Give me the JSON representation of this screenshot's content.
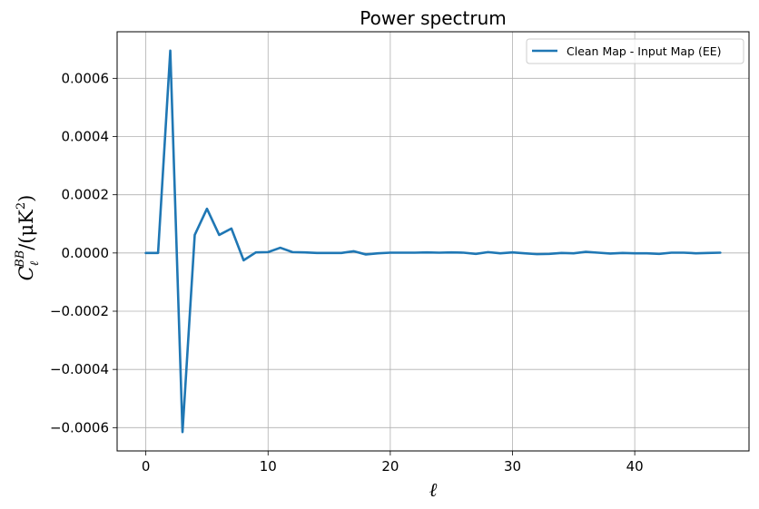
{
  "chart_data": {
    "type": "line",
    "title": "Power spectrum",
    "xlabel": "ℓ",
    "ylabel": "C_ℓ^BB /(μK²)",
    "ylabel_parts": {
      "symbol": "C",
      "subscript": "ℓ",
      "superscript": "BB",
      "unit": "/(μK",
      "unit_sup": "2",
      "close": ")"
    },
    "xlim": [
      -2.35,
      49.35
    ],
    "ylim": [
      -0.00068,
      0.00076
    ],
    "x_ticks": [
      0,
      10,
      20,
      30,
      40
    ],
    "x_tick_labels": [
      "0",
      "10",
      "20",
      "30",
      "40"
    ],
    "y_ticks": [
      -0.0006,
      -0.0004,
      -0.0002,
      0.0,
      0.0002,
      0.0004,
      0.0006
    ],
    "y_tick_labels": [
      "−0.0006",
      "−0.0004",
      "−0.0002",
      "0.0000",
      "0.0002",
      "0.0004",
      "0.0006"
    ],
    "grid": true,
    "legend_position": "upper right",
    "series": [
      {
        "name": "Clean Map - Input Map (EE)",
        "color": "#1f77b4",
        "x": [
          0,
          1,
          2,
          3,
          4,
          5,
          6,
          7,
          8,
          9,
          10,
          11,
          12,
          13,
          14,
          15,
          16,
          17,
          18,
          19,
          20,
          21,
          22,
          23,
          24,
          25,
          26,
          27,
          28,
          29,
          30,
          31,
          32,
          33,
          34,
          35,
          36,
          37,
          38,
          39,
          40,
          41,
          42,
          43,
          44,
          45,
          46,
          47
        ],
        "y": [
          0.0,
          0.0,
          0.000695,
          -0.000615,
          6.2e-05,
          0.000152,
          6.2e-05,
          8.4e-05,
          -2.5e-05,
          2e-06,
          3e-06,
          1.8e-05,
          3e-06,
          2e-06,
          0.0,
          0.0,
          0.0,
          6e-06,
          -5e-06,
          -1e-06,
          1e-06,
          1e-06,
          1e-06,
          2e-06,
          1e-06,
          2e-06,
          1e-06,
          -3e-06,
          3e-06,
          -1e-06,
          2e-06,
          -1e-06,
          -4e-06,
          -3e-06,
          0.0,
          -1e-06,
          4e-06,
          1e-06,
          -2e-06,
          0.0,
          -1e-06,
          -1e-06,
          -3e-06,
          1e-06,
          1e-06,
          -1e-06,
          0.0,
          1e-06
        ]
      }
    ]
  }
}
